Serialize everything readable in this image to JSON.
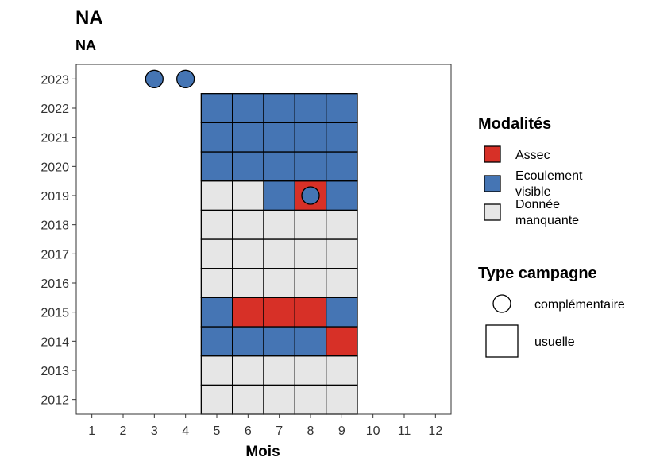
{
  "chart_data": {
    "type": "heatmap",
    "title": "NA",
    "subtitle": "NA",
    "xlabel": "Mois",
    "ylabel": "",
    "x": [
      1,
      2,
      3,
      4,
      5,
      6,
      7,
      8,
      9,
      10,
      11,
      12
    ],
    "x_tick_labels": [
      "1",
      "2",
      "3",
      "4",
      "5",
      "6",
      "7",
      "8",
      "9",
      "10",
      "11",
      "12"
    ],
    "y": [
      2012,
      2013,
      2014,
      2015,
      2016,
      2017,
      2018,
      2019,
      2020,
      2021,
      2022,
      2023
    ],
    "y_tick_labels": [
      "2012",
      "2013",
      "2014",
      "2015",
      "2016",
      "2017",
      "2018",
      "2019",
      "2020",
      "2021",
      "2022",
      "2023"
    ],
    "xlim": [
      0.5,
      12.5
    ],
    "ylim": [
      2011.5,
      2023.5
    ],
    "grid": false,
    "colors": {
      "assec": "#d73027",
      "ecoulement_visible": "#4575b4",
      "donnee_manquante": "#e6e6e6"
    },
    "tiles": [
      {
        "year": 2012,
        "month": 5,
        "modalite": "donnee_manquante"
      },
      {
        "year": 2012,
        "month": 6,
        "modalite": "donnee_manquante"
      },
      {
        "year": 2012,
        "month": 7,
        "modalite": "donnee_manquante"
      },
      {
        "year": 2012,
        "month": 8,
        "modalite": "donnee_manquante"
      },
      {
        "year": 2012,
        "month": 9,
        "modalite": "donnee_manquante"
      },
      {
        "year": 2013,
        "month": 5,
        "modalite": "donnee_manquante"
      },
      {
        "year": 2013,
        "month": 6,
        "modalite": "donnee_manquante"
      },
      {
        "year": 2013,
        "month": 7,
        "modalite": "donnee_manquante"
      },
      {
        "year": 2013,
        "month": 8,
        "modalite": "donnee_manquante"
      },
      {
        "year": 2013,
        "month": 9,
        "modalite": "donnee_manquante"
      },
      {
        "year": 2014,
        "month": 5,
        "modalite": "ecoulement_visible"
      },
      {
        "year": 2014,
        "month": 6,
        "modalite": "ecoulement_visible"
      },
      {
        "year": 2014,
        "month": 7,
        "modalite": "ecoulement_visible"
      },
      {
        "year": 2014,
        "month": 8,
        "modalite": "ecoulement_visible"
      },
      {
        "year": 2014,
        "month": 9,
        "modalite": "assec"
      },
      {
        "year": 2015,
        "month": 5,
        "modalite": "ecoulement_visible"
      },
      {
        "year": 2015,
        "month": 6,
        "modalite": "assec"
      },
      {
        "year": 2015,
        "month": 7,
        "modalite": "assec"
      },
      {
        "year": 2015,
        "month": 8,
        "modalite": "assec"
      },
      {
        "year": 2015,
        "month": 9,
        "modalite": "ecoulement_visible"
      },
      {
        "year": 2016,
        "month": 5,
        "modalite": "donnee_manquante"
      },
      {
        "year": 2016,
        "month": 6,
        "modalite": "donnee_manquante"
      },
      {
        "year": 2016,
        "month": 7,
        "modalite": "donnee_manquante"
      },
      {
        "year": 2016,
        "month": 8,
        "modalite": "donnee_manquante"
      },
      {
        "year": 2016,
        "month": 9,
        "modalite": "donnee_manquante"
      },
      {
        "year": 2017,
        "month": 5,
        "modalite": "donnee_manquante"
      },
      {
        "year": 2017,
        "month": 6,
        "modalite": "donnee_manquante"
      },
      {
        "year": 2017,
        "month": 7,
        "modalite": "donnee_manquante"
      },
      {
        "year": 2017,
        "month": 8,
        "modalite": "donnee_manquante"
      },
      {
        "year": 2017,
        "month": 9,
        "modalite": "donnee_manquante"
      },
      {
        "year": 2018,
        "month": 5,
        "modalite": "donnee_manquante"
      },
      {
        "year": 2018,
        "month": 6,
        "modalite": "donnee_manquante"
      },
      {
        "year": 2018,
        "month": 7,
        "modalite": "donnee_manquante"
      },
      {
        "year": 2018,
        "month": 8,
        "modalite": "donnee_manquante"
      },
      {
        "year": 2018,
        "month": 9,
        "modalite": "donnee_manquante"
      },
      {
        "year": 2019,
        "month": 5,
        "modalite": "donnee_manquante"
      },
      {
        "year": 2019,
        "month": 6,
        "modalite": "donnee_manquante"
      },
      {
        "year": 2019,
        "month": 7,
        "modalite": "ecoulement_visible"
      },
      {
        "year": 2019,
        "month": 8,
        "modalite": "assec"
      },
      {
        "year": 2019,
        "month": 9,
        "modalite": "ecoulement_visible"
      },
      {
        "year": 2020,
        "month": 5,
        "modalite": "ecoulement_visible"
      },
      {
        "year": 2020,
        "month": 6,
        "modalite": "ecoulement_visible"
      },
      {
        "year": 2020,
        "month": 7,
        "modalite": "ecoulement_visible"
      },
      {
        "year": 2020,
        "month": 8,
        "modalite": "ecoulement_visible"
      },
      {
        "year": 2020,
        "month": 9,
        "modalite": "ecoulement_visible"
      },
      {
        "year": 2021,
        "month": 5,
        "modalite": "ecoulement_visible"
      },
      {
        "year": 2021,
        "month": 6,
        "modalite": "ecoulement_visible"
      },
      {
        "year": 2021,
        "month": 7,
        "modalite": "ecoulement_visible"
      },
      {
        "year": 2021,
        "month": 8,
        "modalite": "ecoulement_visible"
      },
      {
        "year": 2021,
        "month": 9,
        "modalite": "ecoulement_visible"
      },
      {
        "year": 2022,
        "month": 5,
        "modalite": "ecoulement_visible"
      },
      {
        "year": 2022,
        "month": 6,
        "modalite": "ecoulement_visible"
      },
      {
        "year": 2022,
        "month": 7,
        "modalite": "ecoulement_visible"
      },
      {
        "year": 2022,
        "month": 8,
        "modalite": "ecoulement_visible"
      },
      {
        "year": 2022,
        "month": 9,
        "modalite": "ecoulement_visible"
      }
    ],
    "points": [
      {
        "year": 2023,
        "month": 3,
        "modalite": "ecoulement_visible",
        "type": "complementaire"
      },
      {
        "year": 2023,
        "month": 4,
        "modalite": "ecoulement_visible",
        "type": "complementaire"
      },
      {
        "year": 2019,
        "month": 8,
        "modalite": "ecoulement_visible",
        "type": "complementaire"
      }
    ],
    "legend_placement": "right",
    "legend": {
      "modalites": {
        "title": "Modalités",
        "entries": [
          {
            "key": "assec",
            "label_lines": [
              "Assec"
            ]
          },
          {
            "key": "ecoulement_visible",
            "label_lines": [
              "Ecoulement",
              "visible"
            ]
          },
          {
            "key": "donnee_manquante",
            "label_lines": [
              "Donnée",
              "manquante"
            ]
          }
        ]
      },
      "type_campagne": {
        "title": "Type campagne",
        "entries": [
          {
            "key": "complementaire",
            "label": "complémentaire",
            "shape": "circle"
          },
          {
            "key": "usuelle",
            "label": "usuelle",
            "shape": "square"
          }
        ]
      }
    }
  }
}
